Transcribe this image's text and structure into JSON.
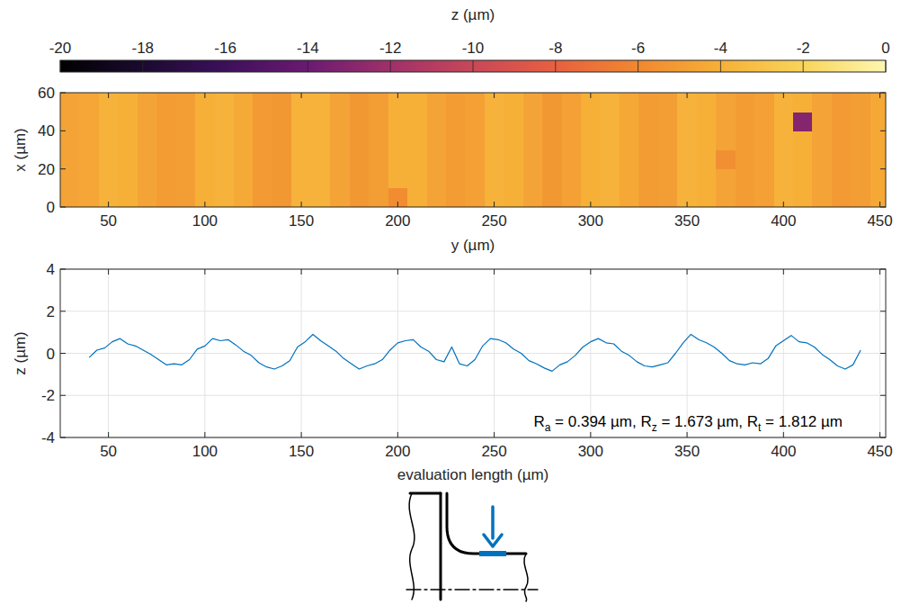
{
  "chart_data": [
    {
      "type": "heatmap",
      "xlabel": "y (µm)",
      "ylabel": "x (µm)",
      "xlim": [
        25,
        453
      ],
      "xticks": [
        50,
        100,
        150,
        200,
        250,
        300,
        350,
        400,
        450
      ],
      "ylim": [
        0,
        60
      ],
      "yticks": [
        0,
        20,
        40,
        60
      ],
      "x": [
        30,
        40,
        50,
        60,
        70,
        80,
        90,
        100,
        110,
        120,
        130,
        140,
        150,
        160,
        170,
        180,
        190,
        200,
        210,
        220,
        230,
        240,
        250,
        260,
        270,
        280,
        290,
        300,
        310,
        320,
        330,
        340,
        350,
        360,
        370,
        380,
        390,
        400,
        410,
        420,
        430,
        440,
        450
      ],
      "y": [
        5,
        15,
        25,
        35,
        45,
        55
      ],
      "cells": [
        [
          -4.6,
          -4.5,
          -3.9,
          -4.0,
          -4.6,
          -5.0,
          -4.9,
          -4.0,
          -3.9,
          -4.3,
          -5.1,
          -5.2,
          -3.9,
          -3.9,
          -4.6,
          -5.2,
          -4.9,
          -5.8,
          -4.0,
          -4.6,
          -5.0,
          -4.8,
          -3.9,
          -4.0,
          -4.6,
          -5.2,
          -4.8,
          -4.0,
          -3.9,
          -4.4,
          -5.0,
          -4.9,
          -3.9,
          -4.0,
          -4.6,
          -5.0,
          -4.8,
          -3.9,
          -4.0,
          -4.6,
          -5.1,
          -4.9,
          -4.4
        ],
        [
          -4.6,
          -4.5,
          -3.9,
          -4.0,
          -4.6,
          -5.0,
          -4.9,
          -4.0,
          -3.9,
          -4.3,
          -5.1,
          -5.2,
          -3.9,
          -3.9,
          -4.6,
          -5.2,
          -4.9,
          -4.0,
          -4.0,
          -4.6,
          -5.0,
          -4.8,
          -3.9,
          -4.0,
          -4.6,
          -5.2,
          -4.8,
          -4.0,
          -3.9,
          -4.4,
          -5.0,
          -4.9,
          -3.9,
          -4.0,
          -4.6,
          -5.0,
          -4.8,
          -3.9,
          -4.0,
          -4.6,
          -5.1,
          -4.9,
          -4.4
        ],
        [
          -4.6,
          -4.5,
          -3.9,
          -4.0,
          -4.6,
          -5.0,
          -4.9,
          -4.0,
          -3.9,
          -4.3,
          -5.1,
          -5.2,
          -3.9,
          -3.9,
          -4.6,
          -5.2,
          -4.9,
          -4.0,
          -4.0,
          -4.6,
          -5.0,
          -4.8,
          -3.9,
          -4.0,
          -4.6,
          -5.2,
          -4.8,
          -4.0,
          -3.9,
          -4.4,
          -5.0,
          -4.9,
          -3.9,
          -4.0,
          -5.6,
          -5.0,
          -4.8,
          -3.9,
          -4.0,
          -4.6,
          -5.1,
          -4.9,
          -4.4
        ],
        [
          -4.6,
          -4.5,
          -3.9,
          -4.0,
          -4.6,
          -5.0,
          -4.9,
          -4.0,
          -3.9,
          -4.3,
          -5.1,
          -5.2,
          -3.9,
          -3.9,
          -4.6,
          -5.2,
          -4.9,
          -4.0,
          -4.0,
          -4.6,
          -5.0,
          -4.8,
          -3.9,
          -4.0,
          -4.6,
          -5.2,
          -4.8,
          -4.0,
          -3.9,
          -4.4,
          -5.0,
          -4.9,
          -3.9,
          -4.0,
          -4.6,
          -5.0,
          -4.8,
          -3.9,
          -4.0,
          -4.6,
          -5.1,
          -4.9,
          -4.4
        ],
        [
          -4.6,
          -4.5,
          -3.9,
          -4.0,
          -4.6,
          -5.0,
          -4.9,
          -4.0,
          -3.9,
          -4.3,
          -5.1,
          -5.2,
          -3.9,
          -3.9,
          -4.6,
          -5.2,
          -4.9,
          -4.0,
          -4.0,
          -4.6,
          -5.0,
          -4.8,
          -3.9,
          -4.0,
          -4.6,
          -5.2,
          -4.8,
          -4.0,
          -3.9,
          -4.4,
          -5.0,
          -4.9,
          -3.9,
          -4.0,
          -4.6,
          -5.0,
          -4.8,
          -3.9,
          -13.0,
          -4.6,
          -5.1,
          -4.9,
          -4.4
        ],
        [
          -4.6,
          -4.5,
          -3.9,
          -4.0,
          -4.6,
          -5.0,
          -4.9,
          -4.0,
          -3.9,
          -4.3,
          -5.1,
          -5.2,
          -3.9,
          -3.9,
          -4.6,
          -5.2,
          -4.9,
          -4.0,
          -4.0,
          -4.6,
          -5.0,
          -4.8,
          -3.9,
          -4.0,
          -4.6,
          -5.2,
          -4.8,
          -4.0,
          -3.9,
          -4.4,
          -5.0,
          -4.9,
          -3.9,
          -4.0,
          -4.6,
          -5.0,
          -4.8,
          -3.9,
          -4.0,
          -4.6,
          -5.1,
          -4.9,
          -4.4
        ]
      ],
      "colorbar": {
        "label": "z (µm)",
        "range": [
          -20,
          0
        ],
        "ticks": [
          -20,
          -18,
          -16,
          -14,
          -12,
          -10,
          -8,
          -6,
          -4,
          -2,
          0
        ]
      }
    },
    {
      "type": "line",
      "xlabel": "evaluation length (µm)",
      "ylabel": "z (µm)",
      "xlim": [
        25,
        453
      ],
      "xticks": [
        50,
        100,
        150,
        200,
        250,
        300,
        350,
        400,
        450
      ],
      "ylim": [
        -4,
        4
      ],
      "yticks": [
        -4,
        -2,
        0,
        2,
        4
      ],
      "grid": true,
      "color": "#0072bd",
      "x": [
        40,
        44,
        48,
        52,
        56,
        60,
        64,
        68,
        72,
        76,
        80,
        84,
        88,
        92,
        96,
        100,
        104,
        108,
        112,
        116,
        120,
        124,
        128,
        132,
        136,
        140,
        144,
        148,
        152,
        156,
        160,
        164,
        168,
        172,
        176,
        180,
        184,
        188,
        192,
        196,
        200,
        204,
        208,
        212,
        216,
        220,
        224,
        228,
        232,
        236,
        240,
        244,
        248,
        252,
        256,
        260,
        264,
        268,
        272,
        276,
        280,
        284,
        288,
        292,
        296,
        300,
        304,
        308,
        312,
        316,
        320,
        324,
        328,
        332,
        336,
        340,
        344,
        348,
        352,
        356,
        360,
        364,
        368,
        372,
        376,
        380,
        384,
        388,
        392,
        396,
        400,
        404,
        408,
        412,
        416,
        420,
        424,
        428,
        432,
        436,
        440
      ],
      "values": [
        -0.2,
        0.15,
        0.25,
        0.55,
        0.7,
        0.45,
        0.35,
        0.15,
        -0.05,
        -0.3,
        -0.55,
        -0.5,
        -0.55,
        -0.3,
        0.2,
        0.35,
        0.7,
        0.6,
        0.65,
        0.4,
        0.1,
        -0.1,
        -0.45,
        -0.65,
        -0.75,
        -0.6,
        -0.35,
        0.3,
        0.55,
        0.9,
        0.6,
        0.35,
        0.1,
        -0.25,
        -0.5,
        -0.75,
        -0.6,
        -0.5,
        -0.3,
        0.15,
        0.5,
        0.6,
        0.65,
        0.3,
        0.1,
        -0.3,
        -0.4,
        0.3,
        -0.5,
        -0.6,
        -0.3,
        0.35,
        0.7,
        0.65,
        0.5,
        0.2,
        0,
        -0.35,
        -0.5,
        -0.7,
        -0.85,
        -0.55,
        -0.4,
        -0.1,
        0.3,
        0.55,
        0.7,
        0.5,
        0.45,
        0.1,
        -0.1,
        -0.4,
        -0.6,
        -0.65,
        -0.55,
        -0.45,
        0,
        0.5,
        0.9,
        0.65,
        0.5,
        0.3,
        0,
        -0.35,
        -0.5,
        -0.55,
        -0.45,
        -0.5,
        -0.25,
        0.35,
        0.6,
        0.85,
        0.55,
        0.5,
        0.3,
        -0.05,
        -0.3,
        -0.6,
        -0.75,
        -0.55,
        0.15
      ],
      "annotation": [
        [
          "R",
          "a",
          " = 0.394 µm, "
        ],
        [
          "R",
          "z",
          " = 1.673 µm, "
        ],
        [
          "R",
          "t",
          " = 1.812 µm"
        ]
      ]
    }
  ]
}
